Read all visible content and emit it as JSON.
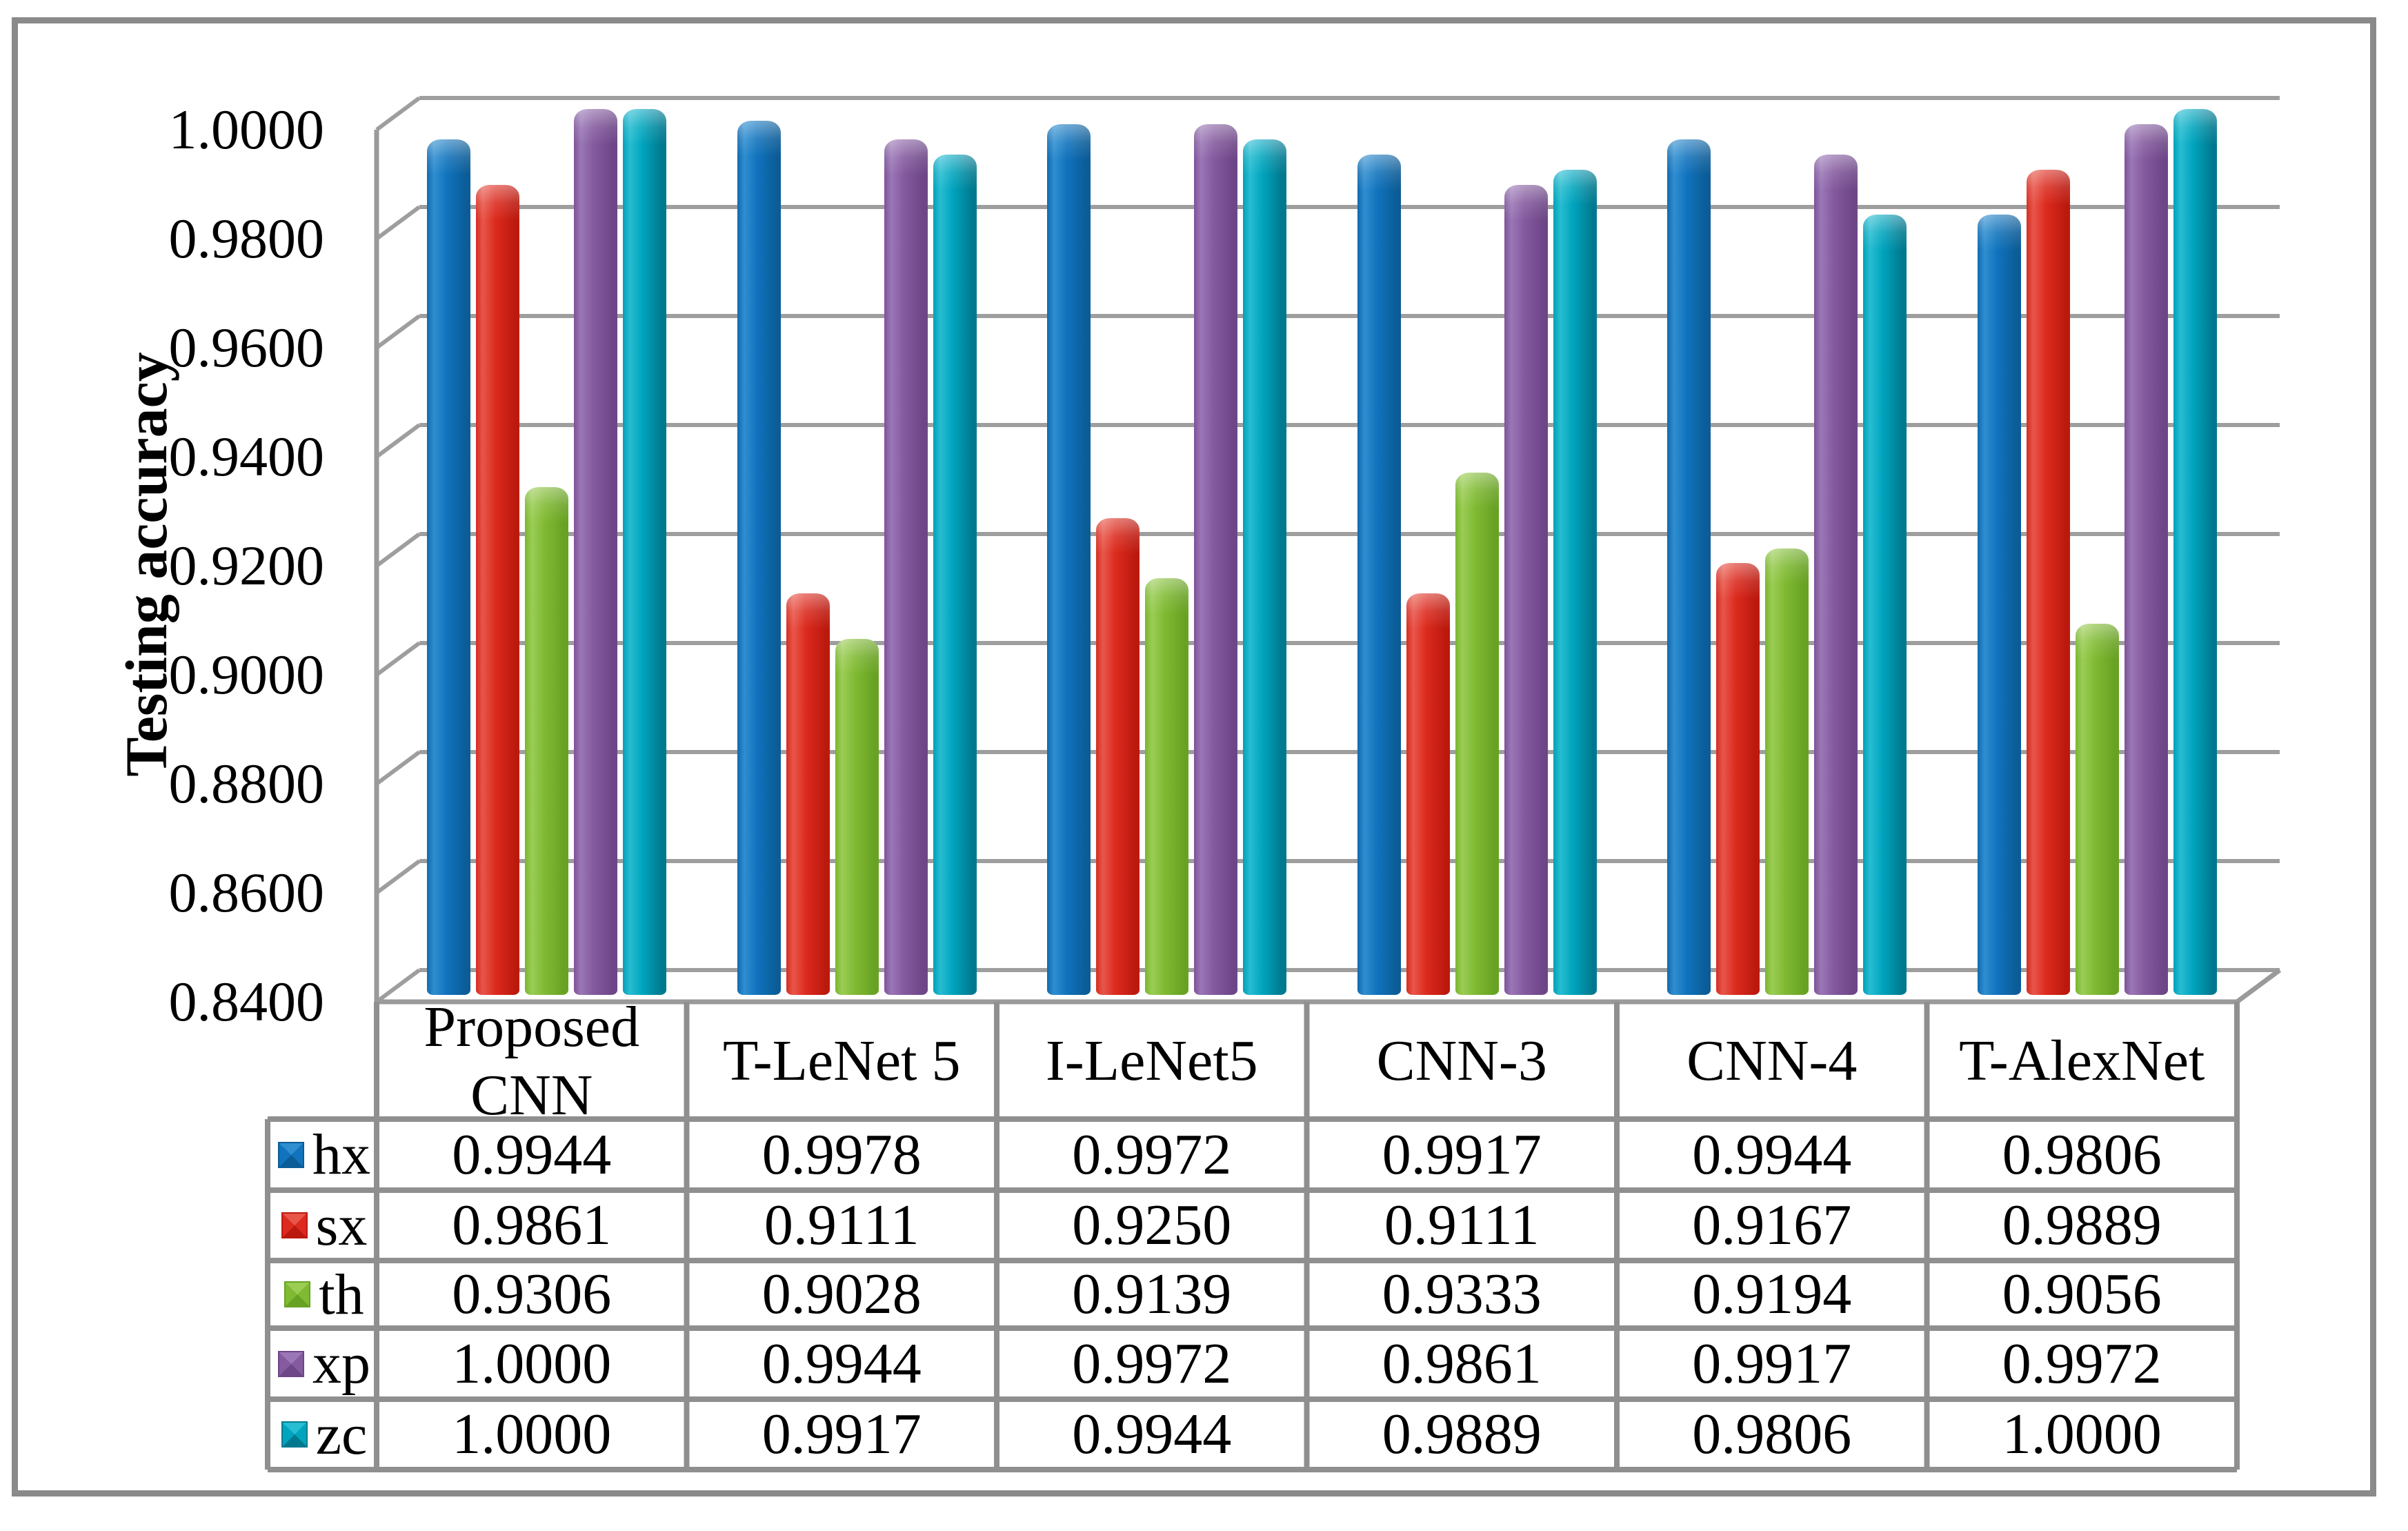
{
  "figure": {
    "background": "#ffffff",
    "border_color": "#8a8a8a"
  },
  "chart_data": {
    "type": "bar",
    "style": "3d-clustered-column",
    "title": "",
    "xlabel": "",
    "ylabel": "Testing accuracy",
    "categories": [
      "Proposed CNN",
      "T-LeNet 5",
      "I-LeNet5",
      "CNN-3",
      "CNN-4",
      "T-AlexNet"
    ],
    "series": [
      {
        "name": "hx",
        "color": "#1173bd",
        "light": "#2f8ed0",
        "dark": "#0b5c97",
        "edge": "#1069ad",
        "values": [
          0.9944,
          0.9978,
          0.9972,
          0.9917,
          0.9944,
          0.9806
        ]
      },
      {
        "name": "sx",
        "color": "#dc2a1e",
        "light": "#e8564a",
        "dark": "#bc190e",
        "edge": "#d62d22",
        "values": [
          0.9861,
          0.9111,
          0.925,
          0.9111,
          0.9167,
          0.9889
        ]
      },
      {
        "name": "th",
        "color": "#80ba33",
        "light": "#9bcd55",
        "dark": "#68a223",
        "edge": "#79b52e",
        "values": [
          0.9306,
          0.9028,
          0.9139,
          0.9333,
          0.9194,
          0.9056
        ]
      },
      {
        "name": "xp",
        "color": "#855a9f",
        "light": "#9a77b6",
        "dark": "#6d4687",
        "edge": "#7e5398",
        "values": [
          1.0,
          0.9944,
          0.9972,
          0.9861,
          0.9917,
          0.9972
        ]
      },
      {
        "name": "zc",
        "color": "#00a4bd",
        "light": "#27bdd2",
        "dark": "#00798f",
        "edge": "#00a0b8",
        "values": [
          1.0,
          0.9917,
          0.9944,
          0.9889,
          0.9806,
          1.0
        ]
      }
    ],
    "ylim": [
      0.84,
      1.0
    ],
    "ytick_step": 0.02,
    "yticks": [
      "1.0000",
      "0.9800",
      "0.9600",
      "0.9400",
      "0.9200",
      "0.9000",
      "0.8800",
      "0.8600",
      "0.8400"
    ],
    "grid": true,
    "legend_position": "data-table-left",
    "value_format_decimals": 4
  },
  "colors": {
    "gridline": "#9e9e9e",
    "axis": "#9a9a9a",
    "table_border": "#8f8f8f",
    "text": "#000000"
  }
}
